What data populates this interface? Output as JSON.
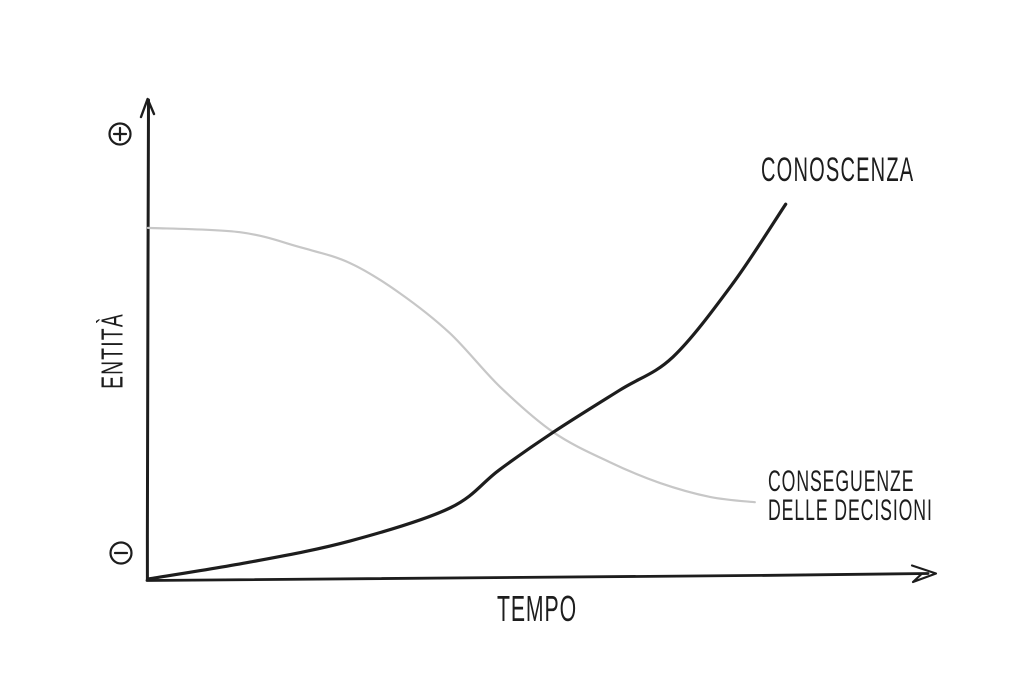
{
  "colors": {
    "background": "#ffffff",
    "ink": "#1d1d1d",
    "muted_curve": "#c7c7c7"
  },
  "labels": {
    "knowledge": "CONOSCENZA",
    "consequences_line1": "CONSEGUENZE",
    "consequences_line2": "DELLE DECISIONI",
    "x_axis": "TEMPO",
    "y_axis": "ENTITÀ",
    "y_axis_top_symbol": "+",
    "y_axis_bottom_symbol": "−"
  },
  "chart_data": {
    "type": "line",
    "style": "hand-drawn-sketch",
    "title": "",
    "xlabel": "TEMPO",
    "ylabel": "ENTITÀ",
    "grid": false,
    "legend": "inline-annotations",
    "x_range": [
      0,
      1
    ],
    "y_range": [
      0,
      1
    ],
    "y_axis_symbols": {
      "top": "⊕",
      "bottom": "⊖"
    },
    "crossing_point": [
      0.525,
      0.306
    ],
    "series": [
      {
        "name": "CONOSCENZA",
        "annotation": "CONOSCENZA",
        "trend": "accelerating increase",
        "color": "#1d1d1d",
        "stroke_width": 3.2,
        "points": [
          [
            0.0,
            0.002
          ],
          [
            0.132,
            0.037
          ],
          [
            0.262,
            0.081
          ],
          [
            0.391,
            0.149
          ],
          [
            0.455,
            0.228
          ],
          [
            0.525,
            0.306
          ],
          [
            0.611,
            0.393
          ],
          [
            0.68,
            0.462
          ],
          [
            0.758,
            0.615
          ],
          [
            0.826,
            0.778
          ]
        ]
      },
      {
        "name": "CONSEGUENZE DELLE DECISIONI",
        "annotation": "CONSEGUENZE DELLE DECISIONI",
        "trend": "sigmoid decrease",
        "color": "#c7c7c7",
        "stroke_width": 2.2,
        "points": [
          [
            0.0,
            0.729
          ],
          [
            0.119,
            0.72
          ],
          [
            0.197,
            0.689
          ],
          [
            0.262,
            0.656
          ],
          [
            0.326,
            0.594
          ],
          [
            0.391,
            0.511
          ],
          [
            0.456,
            0.4
          ],
          [
            0.525,
            0.306
          ],
          [
            0.598,
            0.244
          ],
          [
            0.663,
            0.201
          ],
          [
            0.728,
            0.172
          ],
          [
            0.786,
            0.161
          ]
        ]
      }
    ]
  }
}
